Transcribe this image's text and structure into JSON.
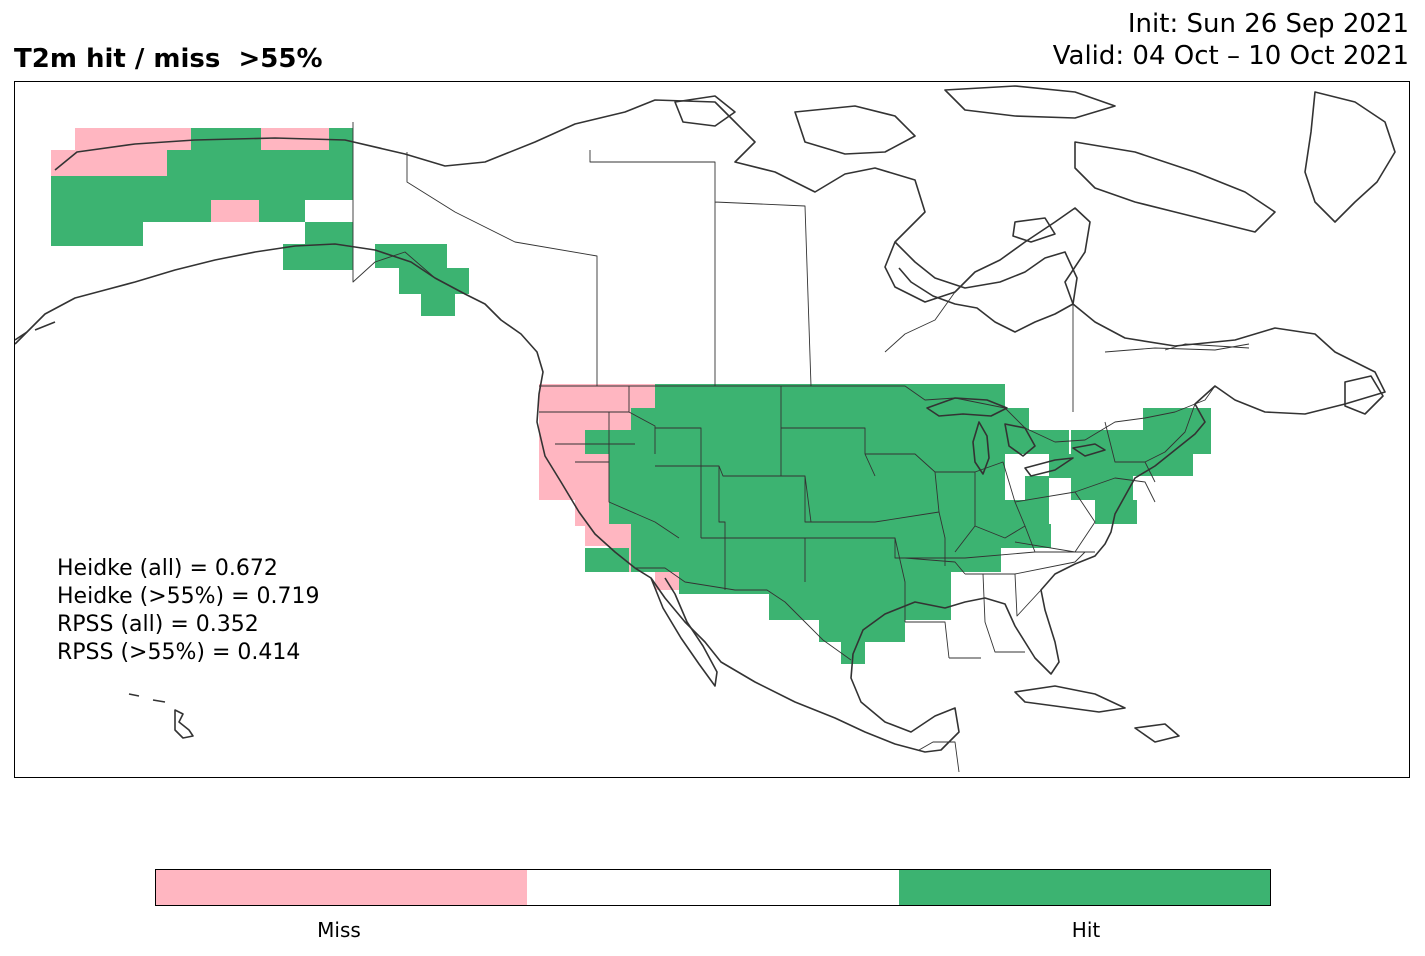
{
  "title": {
    "left": "T2m hit / miss  >55%",
    "init": "Init: Sun 26 Sep 2021",
    "valid": "Valid: 04 Oct – 10 Oct 2021"
  },
  "stats": [
    "Heidke (all) = 0.672",
    "Heidke (>55%) = 0.719",
    "RPSS (all) = 0.352",
    "RPSS (>55%) = 0.414"
  ],
  "colorbar": {
    "segments": [
      {
        "category": "Miss",
        "color": "#ffb6c1"
      },
      {
        "category": "neutral",
        "color": "#ffffff"
      },
      {
        "category": "Hit",
        "color": "#3cb371"
      }
    ],
    "labels": [
      "Miss",
      "Hit"
    ]
  },
  "colors": {
    "hit": "#3cb371",
    "miss": "#ffb6c1",
    "outline": "#333333"
  },
  "regions": {
    "alaska_hit": [
      "western Alaska interior",
      "northern Alaska",
      "southwest Alaska",
      "south-central Alaska",
      "Alaska panhandle"
    ],
    "alaska_miss": [
      "Seward Peninsula",
      "Brooks Range",
      "Yukon delta interior"
    ],
    "conus_miss": [
      "Washington coast",
      "Oregon",
      "northern California",
      "central California",
      "southern California coast",
      "Arizona border"
    ],
    "conus_hit": [
      "Northern Plains",
      "Rockies",
      "Great Basin",
      "Southwest",
      "Texas",
      "Midwest",
      "Great Lakes",
      "Ohio Valley",
      "Mid-Atlantic",
      "New England",
      "Lower Mississippi"
    ],
    "conus_neutral": [
      "Southeast",
      "Florida",
      "Carolinas",
      "Appalachians"
    ]
  }
}
